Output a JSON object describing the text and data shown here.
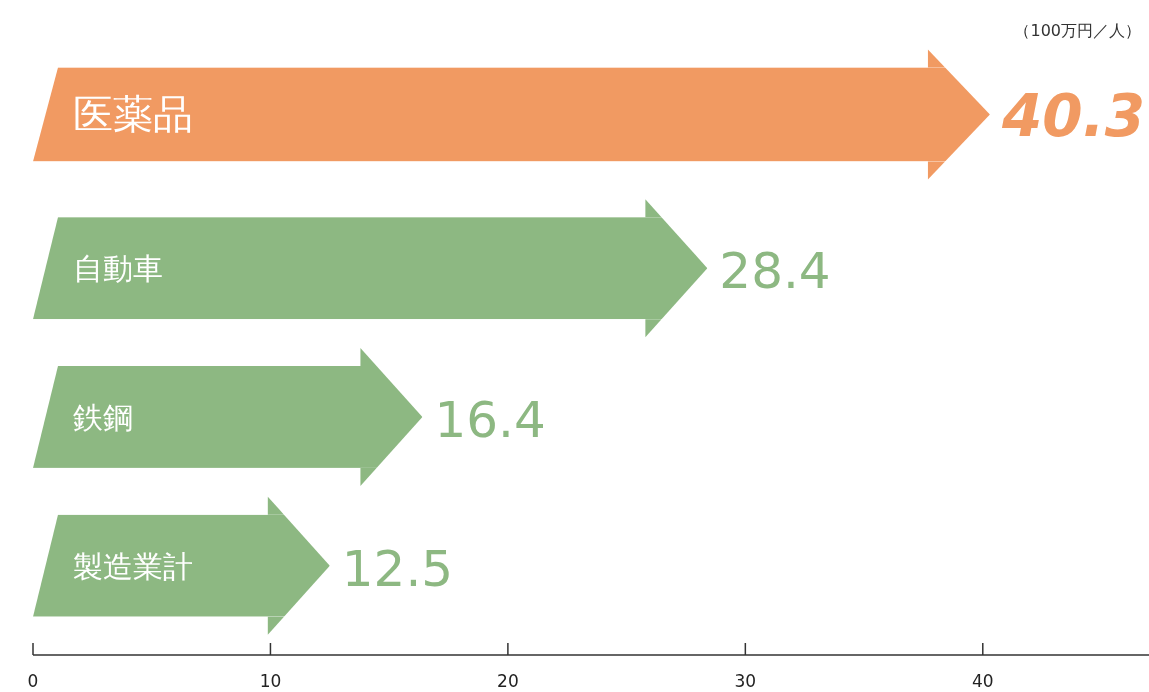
{
  "chart_data": {
    "type": "bar",
    "orientation": "horizontal",
    "categories": [
      "医薬品",
      "自動車",
      "鉄鋼",
      "製造業計"
    ],
    "values": [
      40.3,
      28.4,
      16.4,
      12.5
    ],
    "colors": [
      "#f19a62",
      "#8db882",
      "#8db882",
      "#8db882"
    ],
    "xlim": [
      0,
      47
    ],
    "xticks": [
      0,
      10,
      20,
      30,
      40
    ],
    "data_labels": true,
    "annotations": [
      "（100万円／人）"
    ]
  }
}
